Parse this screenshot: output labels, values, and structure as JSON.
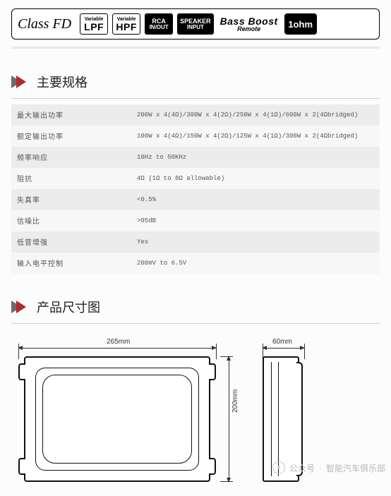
{
  "badges": {
    "classfd": "Class FD",
    "lpf_top": "Variable",
    "lpf": "LPF",
    "hpf_top": "Variable",
    "hpf": "HPF",
    "rca_top": "RCA",
    "rca_bot": "IN/OUT",
    "spk_top": "SPEAKER",
    "spk_bot": "INPUT",
    "bb_main": "Bass Boost",
    "bb_sub": "Remote",
    "ohm": "1ohm"
  },
  "sections": {
    "specs_title": "主要规格",
    "dims_title": "产品尺寸图"
  },
  "spec_rows": [
    {
      "k": "最大输出功率",
      "v": "200W x 4(4Ω)/300W x 4(2Ω)/250W x 4(1Ω)/600W x 2(4Ωbridged)"
    },
    {
      "k": "额定输出功率",
      "v": "100W x 4(4Ω)/150W x 4(2Ω)/125W x 4(1Ω)/300W x 2(4Ωbridged)"
    },
    {
      "k": "频率响应",
      "v": "10Hz to 50KHz"
    },
    {
      "k": "阻抗",
      "v": "4Ω (1Ω to 8Ω allowable)"
    },
    {
      "k": "失真率",
      "v": "<0.5%"
    },
    {
      "k": "信噪比",
      "v": ">95dB"
    },
    {
      "k": "低音增强",
      "v": "Yes"
    },
    {
      "k": "输入电平控制",
      "v": "200mV to 6.5V"
    }
  ],
  "dims": {
    "width": "265mm",
    "depth": "60mm",
    "height": "200mm"
  },
  "watermark": {
    "src": "公众号",
    "name": "智能汽车俱乐部"
  }
}
